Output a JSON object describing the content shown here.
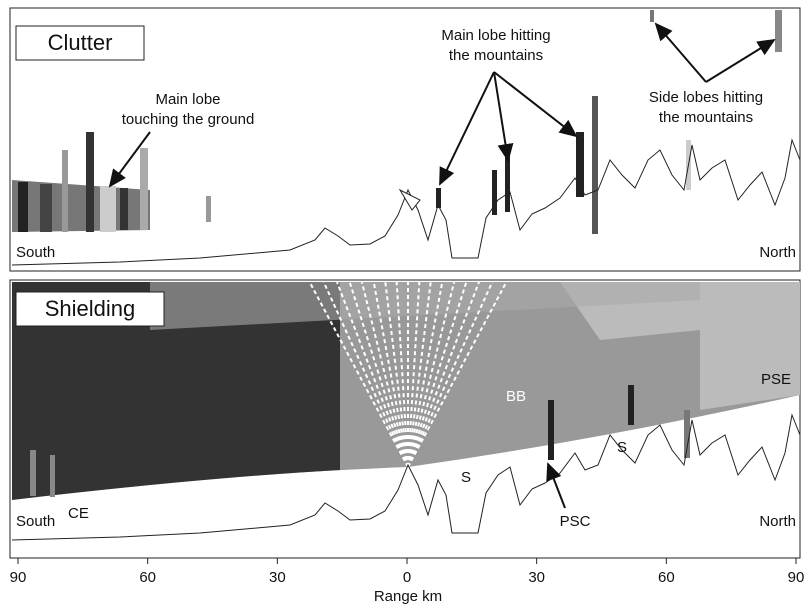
{
  "top_panel": {
    "title": "Clutter",
    "main_lobe_ground": [
      "Main lobe",
      "touching the ground"
    ],
    "main_lobe_mountains": [
      "Main lobe hitting",
      "the mountains"
    ],
    "side_lobes_mountains": [
      "Side lobes hitting",
      "the mountains"
    ],
    "left_label": "South",
    "right_label": "North"
  },
  "bottom_panel": {
    "title": "Shielding",
    "bb": "BB",
    "pse": "PSE",
    "s_left": "S",
    "s_right": "S",
    "psc": "PSC",
    "left_label": "South",
    "ce": "CE",
    "right_label": "North"
  },
  "axis": {
    "label": "Range km",
    "xlim": [
      -90,
      90
    ],
    "xticks": [
      {
        "value": -90,
        "label": "90"
      },
      {
        "value": -60,
        "label": "60"
      },
      {
        "value": -30,
        "label": "30"
      },
      0,
      30,
      60,
      90
    ]
  }
}
